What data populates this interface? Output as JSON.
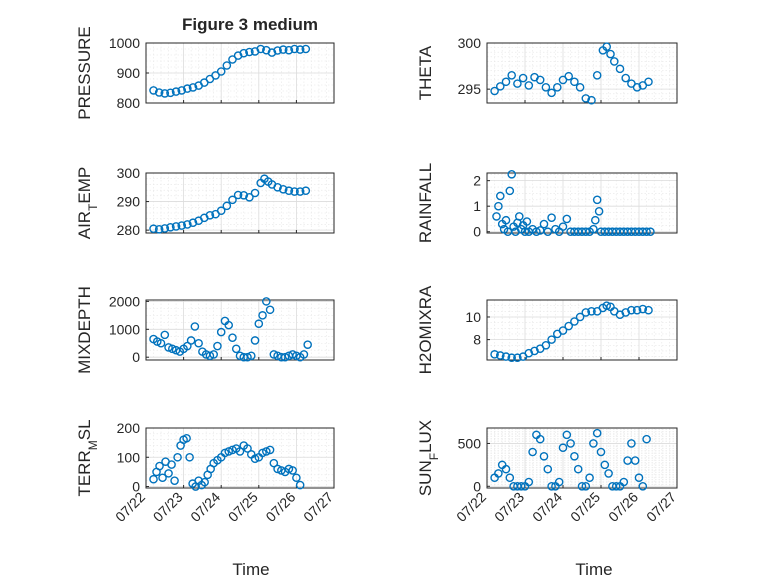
{
  "figure": {
    "title": "Figure 3 medium",
    "xlabel": "Time",
    "xticks": [
      "07/22",
      "07/23",
      "07/24",
      "07/25",
      "07/26",
      "07/27"
    ],
    "marker_color": "#0072BD",
    "grid": true
  },
  "chart_data": [
    {
      "type": "scatter",
      "ylabel": "PRESSURE",
      "ylim": [
        800,
        1000
      ],
      "yticks": [
        800,
        900,
        1000
      ],
      "yticklabels": [
        "800",
        "900",
        "1000"
      ],
      "x": [
        0.2,
        0.35,
        0.5,
        0.65,
        0.8,
        0.95,
        1.1,
        1.25,
        1.4,
        1.55,
        1.7,
        1.85,
        2.0,
        2.15,
        2.3,
        2.45,
        2.6,
        2.75,
        2.9,
        3.05,
        3.2,
        3.35,
        3.5,
        3.65,
        3.8,
        3.95,
        4.1,
        4.25
      ],
      "y": [
        842,
        835,
        832,
        834,
        838,
        842,
        848,
        852,
        858,
        868,
        880,
        892,
        905,
        925,
        945,
        958,
        966,
        970,
        972,
        980,
        976,
        968,
        975,
        978,
        976,
        980,
        978,
        980
      ]
    },
    {
      "type": "scatter",
      "ylabel": "THETA",
      "ylim": [
        293.5,
        300
      ],
      "yticks": [
        295,
        300
      ],
      "yticklabels": [
        "295",
        "300"
      ],
      "x": [
        0.2,
        0.35,
        0.5,
        0.65,
        0.8,
        0.95,
        1.1,
        1.25,
        1.4,
        1.55,
        1.7,
        1.85,
        2.0,
        2.15,
        2.3,
        2.45,
        2.6,
        2.75,
        2.9,
        3.05,
        3.15,
        3.25,
        3.35,
        3.5,
        3.65,
        3.8,
        3.95,
        4.1,
        4.25
      ],
      "y": [
        294.8,
        295.3,
        295.8,
        296.5,
        295.6,
        296.2,
        295.4,
        296.3,
        296.0,
        295.2,
        294.6,
        295.2,
        296.0,
        296.4,
        295.8,
        295.2,
        294.0,
        293.8,
        296.5,
        299.2,
        299.6,
        298.8,
        298.0,
        297.2,
        296.2,
        295.6,
        295.2,
        295.4,
        295.8
      ]
    },
    {
      "type": "scatter",
      "ylabel": "AIR",
      "ylabel_sub": "T",
      "ylabel_tail": "EMP",
      "ylim": [
        279,
        300
      ],
      "yticks": [
        280,
        290,
        300
      ],
      "yticklabels": [
        "280",
        "290",
        "300"
      ],
      "x": [
        0.2,
        0.35,
        0.5,
        0.65,
        0.8,
        0.95,
        1.1,
        1.25,
        1.4,
        1.55,
        1.7,
        1.85,
        2.0,
        2.15,
        2.3,
        2.45,
        2.6,
        2.75,
        2.9,
        3.05,
        3.15,
        3.25,
        3.35,
        3.5,
        3.65,
        3.8,
        3.95,
        4.1,
        4.25
      ],
      "y": [
        280.5,
        280.3,
        280.6,
        281.0,
        281.3,
        281.6,
        282.0,
        282.6,
        283.3,
        284.3,
        285.2,
        285.6,
        286.8,
        288.5,
        290.6,
        292.3,
        292.2,
        291.5,
        293.0,
        296.5,
        298.0,
        297.0,
        296.0,
        295.0,
        294.3,
        293.8,
        293.5,
        293.5,
        293.8
      ]
    },
    {
      "type": "scatter",
      "ylabel": "RAINFALL",
      "ylim": [
        -0.05,
        2.3
      ],
      "yticks": [
        0,
        1,
        2
      ],
      "yticklabels": [
        "0",
        "1",
        "2"
      ],
      "x": [
        0.25,
        0.3,
        0.35,
        0.4,
        0.45,
        0.5,
        0.55,
        0.6,
        0.65,
        0.7,
        0.75,
        0.8,
        0.85,
        0.9,
        0.95,
        1.0,
        1.05,
        1.1,
        1.2,
        1.3,
        1.4,
        1.5,
        1.6,
        1.7,
        1.8,
        1.9,
        2.0,
        2.1,
        2.2,
        2.3,
        2.4,
        2.5,
        2.6,
        2.7,
        2.8,
        2.85,
        2.9,
        2.95,
        3.0,
        3.1,
        3.2,
        3.3,
        3.4,
        3.5,
        3.6,
        3.7,
        3.8,
        3.9,
        4.0,
        4.1,
        4.2,
        4.3
      ],
      "y": [
        0.6,
        1.0,
        1.4,
        0.3,
        0.1,
        0.45,
        0.0,
        1.6,
        2.25,
        0.2,
        0.0,
        0.35,
        0.6,
        0.1,
        0.25,
        0.0,
        0.4,
        0.0,
        0.1,
        0.0,
        0.05,
        0.3,
        0.0,
        0.55,
        0.1,
        0.0,
        0.2,
        0.5,
        0.0,
        0.0,
        0.0,
        0.0,
        0.0,
        0.0,
        0.1,
        0.45,
        1.25,
        0.8,
        0.0,
        0.0,
        0.0,
        0.0,
        0.0,
        0.0,
        0.0,
        0.0,
        0.0,
        0.0,
        0.0,
        0.0,
        0.0,
        0.0
      ]
    },
    {
      "type": "scatter",
      "ylabel": "MIXDEPTH",
      "ylim": [
        -100,
        2050
      ],
      "yticks": [
        0,
        1000,
        2000
      ],
      "yticklabels": [
        "0",
        "1000",
        "2000"
      ],
      "x": [
        0.2,
        0.3,
        0.4,
        0.5,
        0.6,
        0.7,
        0.8,
        0.9,
        1.0,
        1.1,
        1.2,
        1.3,
        1.4,
        1.5,
        1.6,
        1.7,
        1.8,
        1.9,
        2.0,
        2.1,
        2.2,
        2.3,
        2.4,
        2.5,
        2.6,
        2.7,
        2.8,
        2.9,
        3.0,
        3.1,
        3.2,
        3.3,
        3.4,
        3.5,
        3.6,
        3.7,
        3.8,
        3.9,
        4.0,
        4.1,
        4.2,
        4.3
      ],
      "y": [
        650,
        560,
        500,
        800,
        350,
        300,
        250,
        200,
        300,
        400,
        600,
        1100,
        500,
        200,
        100,
        50,
        100,
        400,
        900,
        1300,
        1150,
        700,
        300,
        50,
        0,
        0,
        50,
        600,
        1200,
        1500,
        2000,
        1700,
        100,
        50,
        0,
        0,
        50,
        100,
        50,
        0,
        100,
        450
      ]
    },
    {
      "type": "scatter",
      "ylabel": "H2OMIXRA",
      "ylim": [
        6.2,
        11.5
      ],
      "yticks": [
        8,
        10
      ],
      "yticklabels": [
        "8",
        "10"
      ],
      "x": [
        0.2,
        0.35,
        0.5,
        0.65,
        0.8,
        0.95,
        1.1,
        1.25,
        1.4,
        1.55,
        1.7,
        1.85,
        2.0,
        2.15,
        2.3,
        2.45,
        2.6,
        2.75,
        2.9,
        3.05,
        3.15,
        3.25,
        3.35,
        3.5,
        3.65,
        3.8,
        3.95,
        4.1,
        4.25
      ],
      "y": [
        6.7,
        6.6,
        6.5,
        6.4,
        6.4,
        6.5,
        6.8,
        7.0,
        7.2,
        7.5,
        8.0,
        8.5,
        8.8,
        9.2,
        9.6,
        10.0,
        10.4,
        10.5,
        10.5,
        10.8,
        11.0,
        10.9,
        10.5,
        10.2,
        10.4,
        10.6,
        10.6,
        10.7,
        10.6
      ]
    },
    {
      "type": "scatter",
      "ylabel": "TERR",
      "ylabel_sub": "M",
      "ylabel_tail": "SL",
      "ylim": [
        -5,
        200
      ],
      "yticks": [
        0,
        100,
        200
      ],
      "yticklabels": [
        "0",
        "100",
        "200"
      ],
      "x": [
        0.2,
        0.28,
        0.36,
        0.44,
        0.52,
        0.6,
        0.68,
        0.76,
        0.84,
        0.92,
        1.0,
        1.08,
        1.16,
        1.24,
        1.32,
        1.4,
        1.48,
        1.56,
        1.64,
        1.72,
        1.8,
        1.9,
        2.0,
        2.1,
        2.2,
        2.3,
        2.4,
        2.5,
        2.6,
        2.7,
        2.8,
        2.9,
        3.0,
        3.1,
        3.2,
        3.3,
        3.4,
        3.5,
        3.6,
        3.7,
        3.8,
        3.9,
        4.0,
        4.1
      ],
      "y": [
        25,
        50,
        70,
        30,
        85,
        45,
        75,
        20,
        100,
        140,
        160,
        165,
        100,
        10,
        0,
        20,
        5,
        15,
        40,
        60,
        80,
        90,
        100,
        115,
        120,
        125,
        130,
        120,
        140,
        130,
        110,
        95,
        100,
        115,
        120,
        125,
        80,
        60,
        55,
        50,
        60,
        55,
        30,
        5
      ]
    },
    {
      "type": "scatter",
      "ylabel": "SUN",
      "ylabel_sub": "F",
      "ylabel_tail": "LUX",
      "ylim": [
        -20,
        680
      ],
      "yticks": [
        0,
        500
      ],
      "yticklabels": [
        "0",
        "500"
      ],
      "x": [
        0.2,
        0.3,
        0.4,
        0.5,
        0.6,
        0.7,
        0.8,
        0.9,
        1.0,
        1.1,
        1.2,
        1.3,
        1.4,
        1.5,
        1.6,
        1.7,
        1.8,
        1.9,
        2.0,
        2.1,
        2.2,
        2.3,
        2.4,
        2.5,
        2.6,
        2.7,
        2.8,
        2.9,
        3.0,
        3.1,
        3.2,
        3.3,
        3.4,
        3.5,
        3.6,
        3.7,
        3.8,
        3.9,
        4.0,
        4.1,
        4.2
      ],
      "y": [
        100,
        150,
        250,
        200,
        100,
        0,
        0,
        0,
        0,
        50,
        400,
        600,
        550,
        350,
        200,
        0,
        0,
        50,
        450,
        600,
        500,
        350,
        200,
        0,
        0,
        100,
        500,
        620,
        400,
        250,
        150,
        0,
        0,
        0,
        50,
        300,
        500,
        300,
        100,
        0,
        550
      ]
    }
  ]
}
